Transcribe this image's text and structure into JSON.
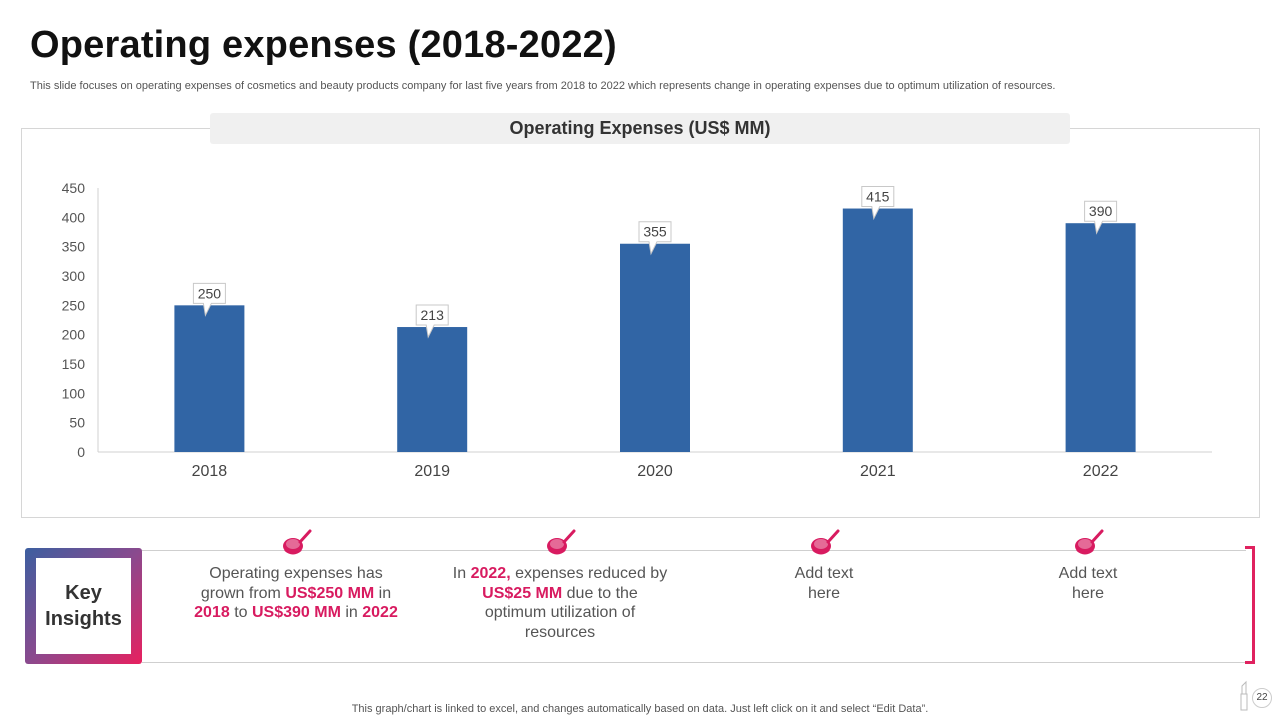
{
  "title": "Operating expenses (2018-2022)",
  "subtitle": "This slide focuses on operating expenses of cosmetics and beauty products company for last five  years from 2018 to 2022 which represents change in operating expenses due to optimum utilization of resources.",
  "chart_data": {
    "type": "bar",
    "title": "Operating Expenses (US$ MM)",
    "categories": [
      "2018",
      "2019",
      "2020",
      "2021",
      "2022"
    ],
    "values": [
      250,
      213,
      355,
      415,
      390
    ],
    "yticks": [
      0,
      50,
      100,
      150,
      200,
      250,
      300,
      350,
      400,
      450
    ],
    "ylim": [
      0,
      450
    ],
    "xlabel": "",
    "ylabel": "",
    "bar_color": "#3165a5",
    "grid": false,
    "legend": "none"
  },
  "insights": {
    "label_line1": "Key",
    "label_line2": "Insights",
    "items": [
      {
        "parts": [
          {
            "t": "Operating expenses has grown from ",
            "h": false
          },
          {
            "t": "US$250 MM",
            "h": true
          },
          {
            "t": " in ",
            "h": false
          },
          {
            "t": "2018",
            "h": true
          },
          {
            "t": " to ",
            "h": false
          },
          {
            "t": "US$390 MM",
            "h": true
          },
          {
            "t": " in ",
            "h": false
          },
          {
            "t": "2022",
            "h": true
          }
        ]
      },
      {
        "parts": [
          {
            "t": "In ",
            "h": false
          },
          {
            "t": "2022,",
            "h": true
          },
          {
            "t": " expenses reduced by ",
            "h": false
          },
          {
            "t": "US$25 MM",
            "h": true
          },
          {
            "t": " due to the optimum utilization of resources",
            "h": false
          }
        ]
      },
      {
        "parts": [
          {
            "t": "Add text here",
            "h": false
          }
        ]
      },
      {
        "parts": [
          {
            "t": "Add text here",
            "h": false
          }
        ]
      }
    ]
  },
  "footer": "This graph/chart is linked to excel, and changes automatically based on data. Just left click on it and select “Edit Data”.",
  "page_number": "22",
  "colors": {
    "accent": "#d81b60",
    "bar": "#3165a5"
  }
}
